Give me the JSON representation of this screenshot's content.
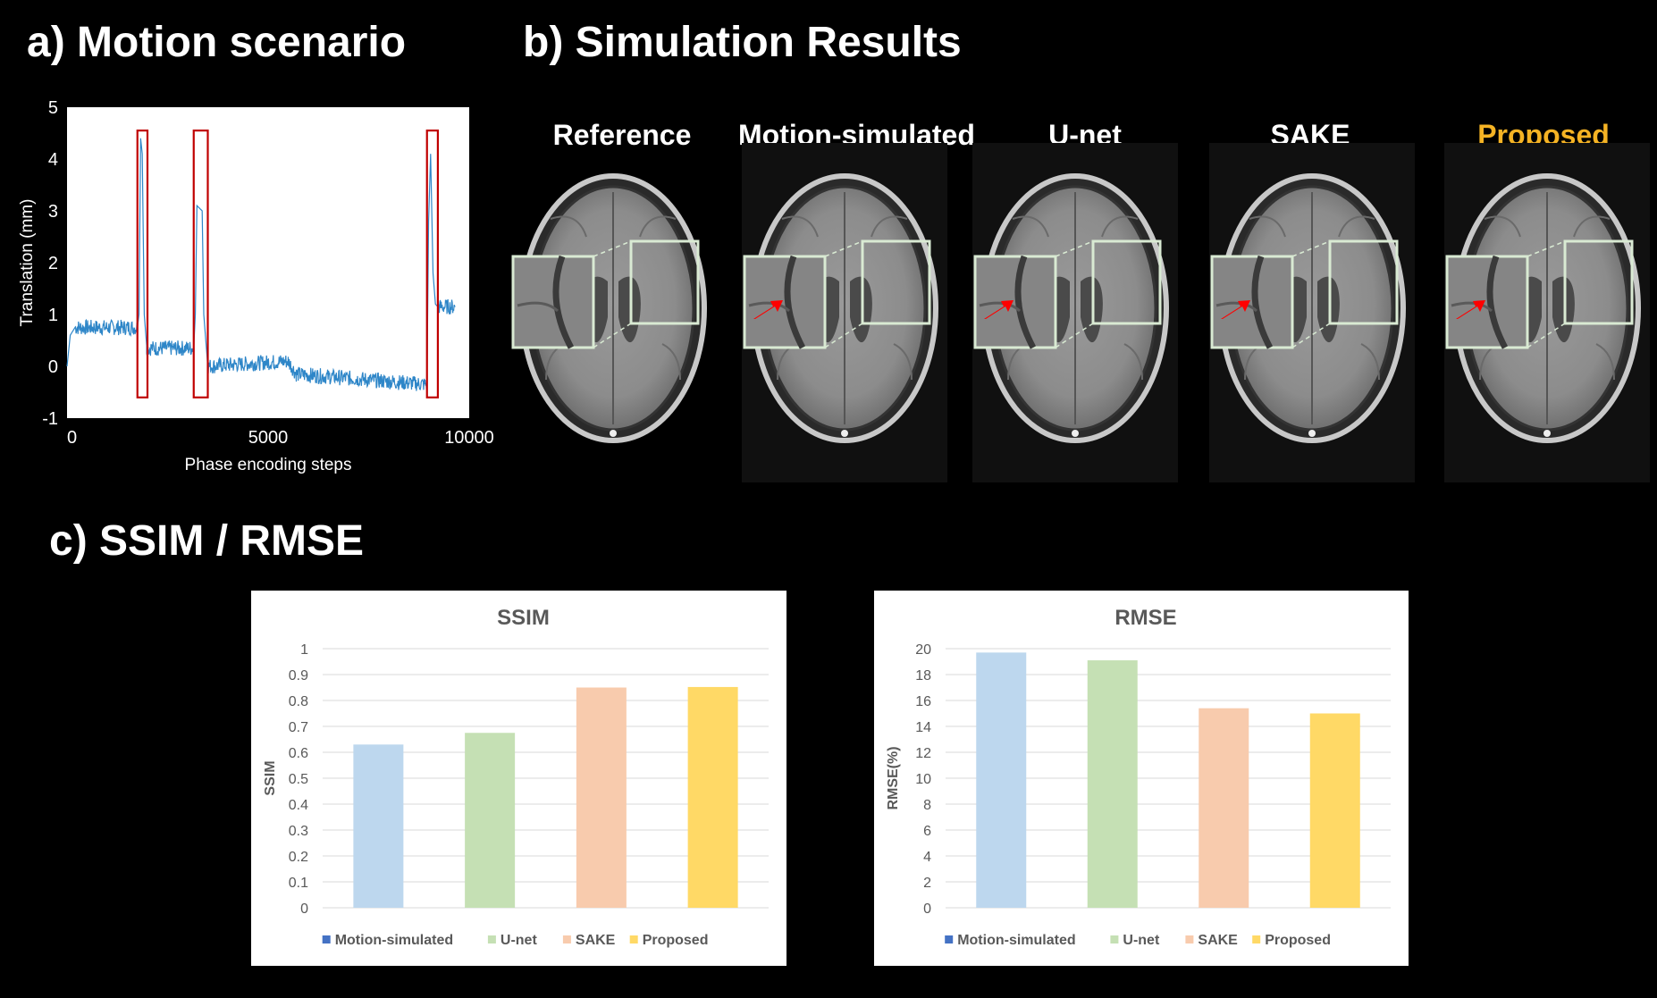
{
  "panel_a": {
    "heading": "a) Motion scenario"
  },
  "panel_b": {
    "heading": "b) Simulation Results",
    "columns": [
      {
        "label": "Reference",
        "color": "#ffffff",
        "arrow": false
      },
      {
        "label": "Motion-simulated",
        "color": "#ffffff",
        "arrow": true
      },
      {
        "label": "U-net",
        "color": "#ffffff",
        "arrow": true
      },
      {
        "label": "SAKE",
        "color": "#ffffff",
        "arrow": true
      },
      {
        "label": "Proposed",
        "color": "#f5b324",
        "arrow": true
      }
    ],
    "zoom_box_color": "#d9ead3",
    "arrow_color": "#ff0000"
  },
  "panel_c": {
    "heading": "c) SSIM / RMSE"
  },
  "chart_data": [
    {
      "id": "motion",
      "type": "line",
      "title": "",
      "xlabel": "Phase encoding steps",
      "ylabel": "Translation (mm)",
      "xlim": [
        0,
        10000
      ],
      "ylim": [
        -1,
        5
      ],
      "xticks": [
        0,
        5000,
        10000
      ],
      "yticks": [
        -1,
        0,
        1,
        2,
        3,
        4,
        5
      ],
      "line_color": "#2e86c8",
      "highlight_color": "#c00000",
      "highlight_ranges": [
        [
          1750,
          2000
        ],
        [
          3150,
          3500
        ],
        [
          8950,
          9220
        ]
      ],
      "segments": [
        {
          "x": [
            0,
            80,
            200,
            1750
          ],
          "y": [
            0.0,
            0.6,
            0.75,
            0.75
          ]
        },
        {
          "x": [
            1750,
            1790,
            1830,
            1870,
            1920,
            1980
          ],
          "y": [
            0.75,
            1.0,
            4.4,
            4.1,
            1.0,
            0.4
          ]
        },
        {
          "x": [
            1980,
            3150
          ],
          "y": [
            0.35,
            0.35
          ]
        },
        {
          "x": [
            3150,
            3190,
            3230,
            3360,
            3400,
            3500
          ],
          "y": [
            0.35,
            1.0,
            3.1,
            3.0,
            1.0,
            0.0
          ]
        },
        {
          "x": [
            3500,
            5500,
            5700,
            8950
          ],
          "y": [
            0.0,
            0.1,
            -0.15,
            -0.35
          ]
        },
        {
          "x": [
            8950,
            8990,
            9040,
            9100,
            9160,
            9220
          ],
          "y": [
            -0.3,
            2.8,
            4.1,
            1.8,
            1.2,
            1.15
          ]
        },
        {
          "x": [
            9220,
            9650
          ],
          "y": [
            1.15,
            1.15
          ]
        }
      ]
    },
    {
      "id": "ssim",
      "type": "bar",
      "title": "SSIM",
      "ylabel": "SSIM",
      "categories": [
        "Motion-simulated",
        "U-net",
        "SAKE",
        "Proposed"
      ],
      "values": [
        0.63,
        0.675,
        0.85,
        0.852
      ],
      "colors": [
        "#bdd7ee",
        "#c5e0b4",
        "#f8cbad",
        "#ffd966"
      ],
      "legend_colors": [
        "#4472c4",
        "#c5e0b4",
        "#f8cbad",
        "#ffd966"
      ],
      "ylim": [
        0,
        1
      ],
      "yticks": [
        "0",
        "0.1",
        "0.2",
        "0.3",
        "0.4",
        "0.5",
        "0.6",
        "0.7",
        "0.8",
        "0.9",
        "1"
      ],
      "legend_position": "bottom"
    },
    {
      "id": "rmse",
      "type": "bar",
      "title": "RMSE",
      "ylabel": "RMSE(%)",
      "categories": [
        "Motion-simulated",
        "U-net",
        "SAKE",
        "Proposed"
      ],
      "values": [
        19.7,
        19.1,
        15.4,
        15.0
      ],
      "colors": [
        "#bdd7ee",
        "#c5e0b4",
        "#f8cbad",
        "#ffd966"
      ],
      "legend_colors": [
        "#4472c4",
        "#c5e0b4",
        "#f8cbad",
        "#ffd966"
      ],
      "ylim": [
        0,
        20
      ],
      "yticks": [
        "0",
        "2",
        "4",
        "6",
        "8",
        "10",
        "12",
        "14",
        "16",
        "18",
        "20"
      ],
      "legend_position": "bottom"
    }
  ]
}
